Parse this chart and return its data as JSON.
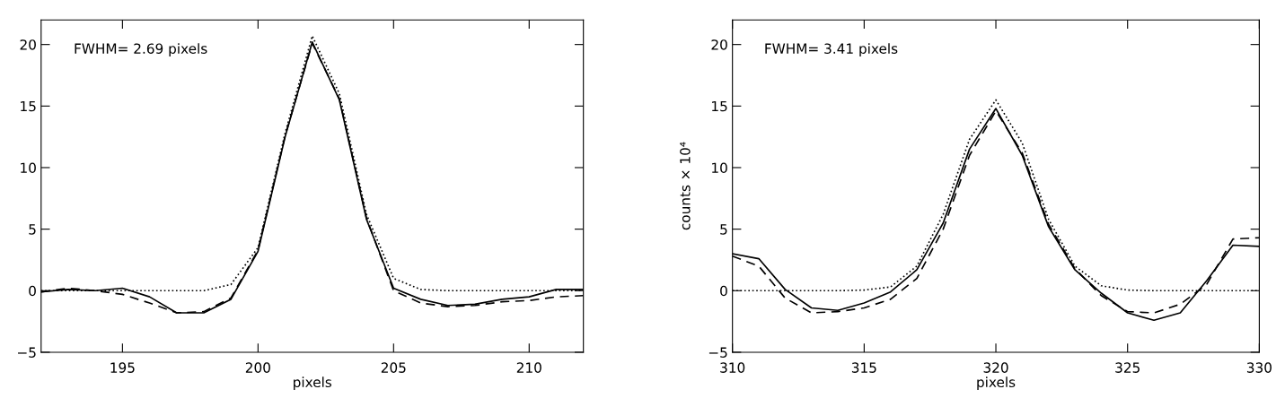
{
  "chart_data": [
    {
      "type": "line",
      "xlabel": "pixels",
      "annotations": [
        "FWHM= 2.69 pixels"
      ],
      "x": [
        192,
        193,
        194,
        195,
        196,
        197,
        198,
        199,
        200,
        201,
        202,
        203,
        204,
        205,
        206,
        207,
        208,
        209,
        210,
        211,
        212
      ],
      "xlim": [
        192,
        212
      ],
      "xticks": [
        195,
        200,
        205,
        210
      ],
      "ylim": [
        -5,
        22
      ],
      "yticks": [
        -5,
        0,
        5,
        10,
        15,
        20
      ],
      "series": [
        {
          "color": "#000000",
          "line_style": "solid",
          "values": [
            -0.1,
            0.1,
            0.0,
            0.2,
            -0.5,
            -1.8,
            -1.8,
            -0.7,
            3.2,
            12.5,
            20.2,
            15.5,
            5.8,
            0.2,
            -0.7,
            -1.2,
            -1.1,
            -0.7,
            -0.5,
            0.1,
            0.1
          ]
        },
        {
          "color": "#000000",
          "line_style": "dashed",
          "values": [
            -0.1,
            0.2,
            0.0,
            -0.3,
            -1.0,
            -1.8,
            -1.7,
            -0.6,
            3.3,
            12.6,
            20.1,
            15.6,
            5.9,
            0.0,
            -1.0,
            -1.3,
            -1.2,
            -0.9,
            -0.8,
            -0.5,
            -0.4
          ]
        },
        {
          "color": "#000000",
          "line_style": "dotted",
          "values": [
            0,
            0,
            0,
            0,
            0,
            0,
            0,
            0.5,
            3.5,
            12.8,
            20.7,
            16.0,
            6.2,
            1.0,
            0.1,
            0,
            0,
            0,
            0,
            0,
            0
          ]
        }
      ]
    },
    {
      "type": "line",
      "xlabel": "pixels",
      "ylabel": "counts × 10⁴",
      "annotations": [
        "FWHM= 3.41 pixels"
      ],
      "x": [
        310,
        311,
        312,
        313,
        314,
        315,
        316,
        317,
        318,
        319,
        320,
        321,
        322,
        323,
        324,
        325,
        326,
        327,
        328,
        329,
        330
      ],
      "xlim": [
        310,
        330
      ],
      "xticks": [
        310,
        315,
        320,
        325,
        330
      ],
      "ylim": [
        -5,
        22
      ],
      "yticks": [
        -5,
        0,
        5,
        10,
        15,
        20
      ],
      "series": [
        {
          "color": "#000000",
          "line_style": "solid",
          "values": [
            3.0,
            2.6,
            0.1,
            -1.4,
            -1.6,
            -1.0,
            -0.1,
            1.7,
            5.5,
            11.5,
            14.8,
            11.0,
            5.2,
            1.7,
            -0.2,
            -1.8,
            -2.4,
            -1.8,
            0.8,
            3.7,
            3.6
          ]
        },
        {
          "color": "#000000",
          "line_style": "dashed",
          "values": [
            2.8,
            2.0,
            -0.6,
            -1.8,
            -1.7,
            -1.4,
            -0.7,
            1.0,
            5.0,
            11.0,
            14.6,
            11.2,
            5.4,
            1.8,
            -0.4,
            -1.7,
            -1.8,
            -1.1,
            0.5,
            4.2,
            4.3
          ]
        },
        {
          "color": "#000000",
          "line_style": "dotted",
          "values": [
            0,
            0,
            0,
            0,
            0,
            0.05,
            0.3,
            2.0,
            6.2,
            12.3,
            15.5,
            12.0,
            5.8,
            2.0,
            0.4,
            0.05,
            0,
            0,
            0,
            0,
            0
          ]
        }
      ]
    }
  ]
}
